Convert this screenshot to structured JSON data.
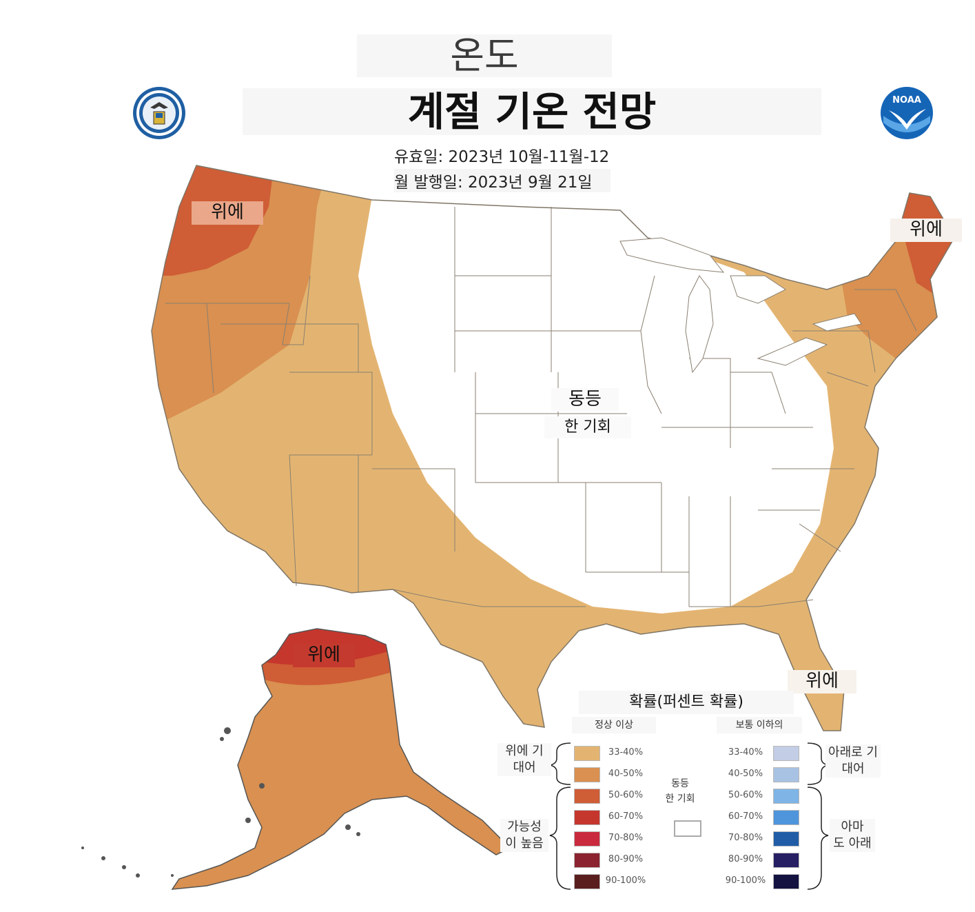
{
  "header": {
    "heading": "온도",
    "title": "계절 기온 전망",
    "valid": "유효일: 2023년 10월-11월-12",
    "issued": "월 발행일: 2023년 9월 21일"
  },
  "map_labels": {
    "northwest": "위에",
    "northeast": "위에",
    "florida": "위에",
    "alaska": "위에",
    "center_line1": "동등",
    "center_line2": "한 기회"
  },
  "legend": {
    "title": "확률(퍼센트 확률)",
    "above_header": "정상 이상",
    "below_header": "보통 이하의",
    "leaning_above_line1": "위에 기",
    "leaning_above_line2": "대어",
    "likely_above_line1": "가능성",
    "likely_above_line2": "이 높음",
    "leaning_below_line1": "아래로 기",
    "leaning_below_line2": "대어",
    "likely_below_line1": "아마",
    "likely_below_line2": "도 아래",
    "equal_line1": "동등",
    "equal_line2": "한 기회",
    "above": [
      {
        "pct": "33-40%",
        "color": "#e3b471"
      },
      {
        "pct": "40-50%",
        "color": "#d99050"
      },
      {
        "pct": "50-60%",
        "color": "#cf5d36"
      },
      {
        "pct": "60-70%",
        "color": "#c5372d"
      },
      {
        "pct": "70-80%",
        "color": "#c92a3d"
      },
      {
        "pct": "80-90%",
        "color": "#8b2430"
      },
      {
        "pct": "90-100%",
        "color": "#5a1e1e"
      }
    ],
    "below": [
      {
        "pct": "33-40%",
        "color": "#c3cde6"
      },
      {
        "pct": "40-50%",
        "color": "#a8c2e3"
      },
      {
        "pct": "50-60%",
        "color": "#7eb5e6"
      },
      {
        "pct": "60-70%",
        "color": "#4f95dc"
      },
      {
        "pct": "70-80%",
        "color": "#205da6"
      },
      {
        "pct": "80-90%",
        "color": "#261f63"
      },
      {
        "pct": "90-100%",
        "color": "#141241"
      }
    ]
  },
  "colors": {
    "above_33_40": "#e3b471",
    "above_40_50": "#d99050",
    "above_50_60": "#cf5d36",
    "above_60_70": "#c5372d",
    "state_border": "#8a7f70"
  },
  "logos": {
    "left": "department-of-commerce-seal",
    "right": "noaa-logo",
    "noaa_text": "NOAA"
  }
}
